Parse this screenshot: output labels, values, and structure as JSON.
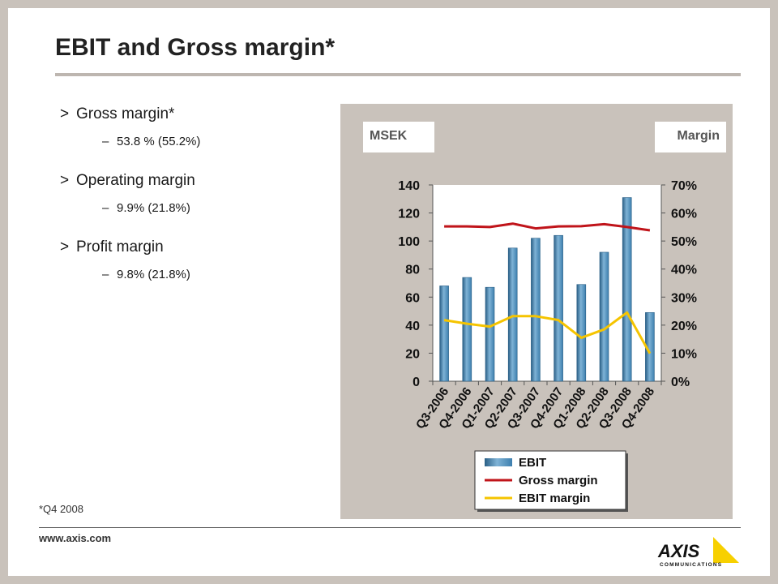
{
  "slide": {
    "title": "EBIT and Gross margin*",
    "bullets": [
      {
        "marker": ">",
        "text": "Gross margin*",
        "sub_marker": "–",
        "sub": "53.8 % (55.2%)"
      },
      {
        "marker": ">",
        "text": "Operating margin",
        "sub_marker": "–",
        "sub": "9.9% (21.8%)"
      },
      {
        "marker": ">",
        "text": "Profit margin",
        "sub_marker": "–",
        "sub": "9.8% (21.8%)"
      }
    ],
    "footnote": "*Q4 2008",
    "url": "www.axis.com",
    "logo": {
      "text": "AXIS",
      "subtext": "COMMUNICATIONS",
      "accent": "#f7d000"
    }
  },
  "chart_data": {
    "type": "bar",
    "left_axis_label": "MSEK",
    "right_axis_label": "Margin",
    "categories": [
      "Q3-2006",
      "Q4-2006",
      "Q1-2007",
      "Q2-2007",
      "Q3-2007",
      "Q4-2007",
      "Q1-2008",
      "Q2-2008",
      "Q3-2008",
      "Q4-2008"
    ],
    "ylim": [
      0,
      140
    ],
    "yticks": [
      "0",
      "20",
      "40",
      "60",
      "80",
      "100",
      "120",
      "140"
    ],
    "y2lim": [
      0,
      0.7
    ],
    "y2ticks": [
      "0%",
      "10%",
      "20%",
      "30%",
      "40%",
      "50%",
      "60%",
      "70%"
    ],
    "series": [
      {
        "name": "EBIT",
        "kind": "bar",
        "axis": "left",
        "color": "#3d7fae",
        "values": [
          68,
          74,
          67,
          95,
          102,
          104,
          69,
          92,
          131,
          49
        ]
      },
      {
        "name": "Gross margin",
        "kind": "line",
        "axis": "right",
        "color": "#c0141a",
        "values": [
          0.552,
          0.552,
          0.55,
          0.562,
          0.545,
          0.552,
          0.553,
          0.56,
          0.55,
          0.538
        ]
      },
      {
        "name": "EBIT margin",
        "kind": "line",
        "axis": "right",
        "color": "#f5c400",
        "values": [
          0.218,
          0.205,
          0.195,
          0.232,
          0.232,
          0.218,
          0.155,
          0.185,
          0.245,
          0.099
        ]
      }
    ],
    "legend_position": "bottom",
    "grid": false
  }
}
